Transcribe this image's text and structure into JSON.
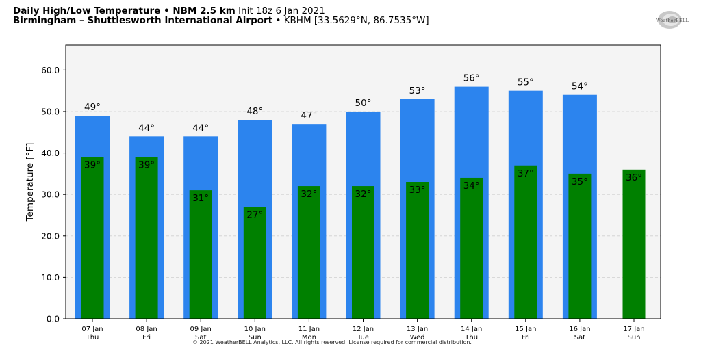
{
  "header": {
    "line1_bold": "Daily High/Low Temperature • NBM 2.5 km",
    "line1_normal": "Init 18z 6 Jan 2021",
    "line2_bold": "Birmingham – Shuttlesworth International Airport",
    "line2_normal": "• KBHM [33.5629°N, 86.7535°W]"
  },
  "logo": {
    "text": "WeatherBELL"
  },
  "footer": {
    "copyright": "© 2021 WeatherBELL Analytics, LLC. All rights reserved. License required for commercial distribution."
  },
  "colors": {
    "high": "#2c84ee",
    "low": "#008000",
    "plot_bg": "#f4f4f4"
  },
  "chart_data": {
    "type": "bar",
    "ylabel": "Temperature [°F]",
    "ylim": [
      0,
      66
    ],
    "yticks": [
      "0.0",
      "10.0",
      "20.0",
      "30.0",
      "40.0",
      "50.0",
      "60.0"
    ],
    "grid": true,
    "categories": [
      [
        "07 Jan",
        "Thu"
      ],
      [
        "08 Jan",
        "Fri"
      ],
      [
        "09 Jan",
        "Sat"
      ],
      [
        "10 Jan",
        "Sun"
      ],
      [
        "11 Jan",
        "Mon"
      ],
      [
        "12 Jan",
        "Tue"
      ],
      [
        "13 Jan",
        "Wed"
      ],
      [
        "14 Jan",
        "Thu"
      ],
      [
        "15 Jan",
        "Fri"
      ],
      [
        "16 Jan",
        "Sat"
      ],
      [
        "17 Jan",
        "Sun"
      ]
    ],
    "series": [
      {
        "values": [
          49,
          44,
          44,
          48,
          47,
          50,
          53,
          56,
          55,
          54,
          null
        ],
        "labels": [
          "49°",
          "44°",
          "44°",
          "48°",
          "47°",
          "50°",
          "53°",
          "56°",
          "55°",
          "54°",
          ""
        ]
      },
      {
        "values": [
          39,
          39,
          31,
          27,
          32,
          32,
          33,
          34,
          37,
          35,
          36
        ],
        "labels": [
          "39°",
          "39°",
          "31°",
          "27°",
          "32°",
          "32°",
          "33°",
          "34°",
          "37°",
          "35°",
          "36°"
        ]
      }
    ]
  }
}
